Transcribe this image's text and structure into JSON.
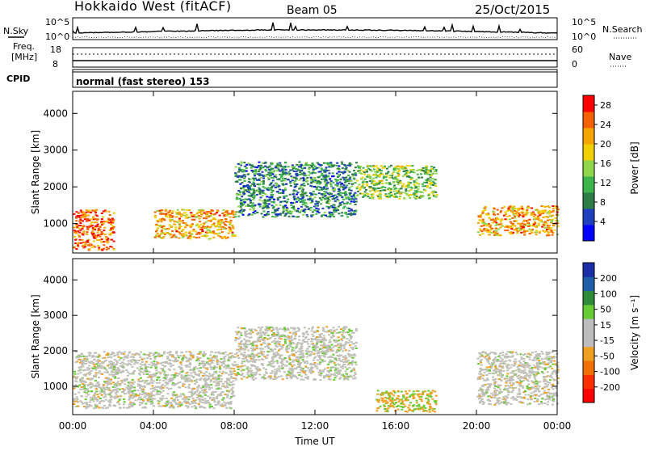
{
  "header": {
    "site": "Hokkaido West (fitACF)",
    "beam": "Beam 05",
    "date": "25/Oct/2015"
  },
  "strip_labels": {
    "nsky": "N.Sky",
    "nsearch": "N.Search",
    "freq_line1": "Freq.",
    "freq_line2": "[MHz]",
    "nave": "Nave",
    "cpid": "CPID",
    "cpid_value": "normal (fast stereo) 153",
    "noise_left_ticks": [
      "10^5",
      "10^0"
    ],
    "noise_right_ticks": [
      "10^5",
      "10^0"
    ],
    "freq_left_ticks": [
      "18",
      "8"
    ],
    "freq_right_ticks": [
      "60",
      "0"
    ]
  },
  "colors": {
    "power_scale": [
      "#0000ff",
      "#1f3fbf",
      "#2e7d46",
      "#3cb44b",
      "#8fd64a",
      "#f0d000",
      "#f5a500",
      "#f56000",
      "#ff0000"
    ],
    "velocity_scale": [
      "#1a2fa8",
      "#1f5faa",
      "#2e8b3a",
      "#66cc33",
      "#bdbdbd",
      "#bdbdbd",
      "#f0a020",
      "#f07000",
      "#ff3000",
      "#ff0000"
    ],
    "gray_scatter": "#c0c0b8"
  },
  "chart_data": [
    {
      "type": "heatmap",
      "name": "Power",
      "xlabel": "Time UT",
      "ylabel": "Slant Range [km]",
      "xlim_hours": [
        0,
        24
      ],
      "ylim_km": [
        200,
        4600
      ],
      "x_ticks": [
        "00:00",
        "04:00",
        "08:00",
        "12:00",
        "16:00",
        "20:00",
        "00:00"
      ],
      "y_ticks": [
        1000,
        2000,
        3000,
        4000
      ],
      "colorbar": {
        "label": "Power [dB]",
        "ticks": [
          4,
          8,
          12,
          16,
          20,
          24,
          28
        ],
        "range": [
          0,
          30
        ]
      },
      "echo_bands_approx": [
        {
          "hours": [
            0,
            2
          ],
          "range_km": [
            300,
            1400
          ],
          "level_db": 26
        },
        {
          "hours": [
            4,
            8
          ],
          "range_km": [
            600,
            1400
          ],
          "level_db": 22
        },
        {
          "hours": [
            8,
            14
          ],
          "range_km": [
            1200,
            2700
          ],
          "level_db": 8
        },
        {
          "hours": [
            14,
            18
          ],
          "range_km": [
            1700,
            2600
          ],
          "level_db": 14
        },
        {
          "hours": [
            20,
            24
          ],
          "range_km": [
            700,
            1500
          ],
          "level_db": 22
        }
      ]
    },
    {
      "type": "heatmap",
      "name": "Velocity",
      "xlabel": "Time UT",
      "ylabel": "Slant Range [km]",
      "xlim_hours": [
        0,
        24
      ],
      "ylim_km": [
        200,
        4600
      ],
      "x_ticks": [
        "00:00",
        "04:00",
        "08:00",
        "12:00",
        "16:00",
        "20:00",
        "00:00"
      ],
      "y_ticks": [
        1000,
        2000,
        3000,
        4000
      ],
      "colorbar": {
        "label": "Velocity [m s⁻¹]",
        "ticks": [
          200,
          100,
          50,
          15,
          -15,
          -50,
          -100,
          -200
        ]
      },
      "echo_bands_approx": [
        {
          "hours": [
            0,
            8
          ],
          "range_km": [
            400,
            2000
          ],
          "velocity": 0
        },
        {
          "hours": [
            8,
            14
          ],
          "range_km": [
            1200,
            2700
          ],
          "velocity": 0
        },
        {
          "hours": [
            15,
            18
          ],
          "range_km": [
            300,
            900
          ],
          "velocity": -60
        },
        {
          "hours": [
            20,
            24
          ],
          "range_km": [
            500,
            2000
          ],
          "velocity": 0
        }
      ]
    }
  ]
}
